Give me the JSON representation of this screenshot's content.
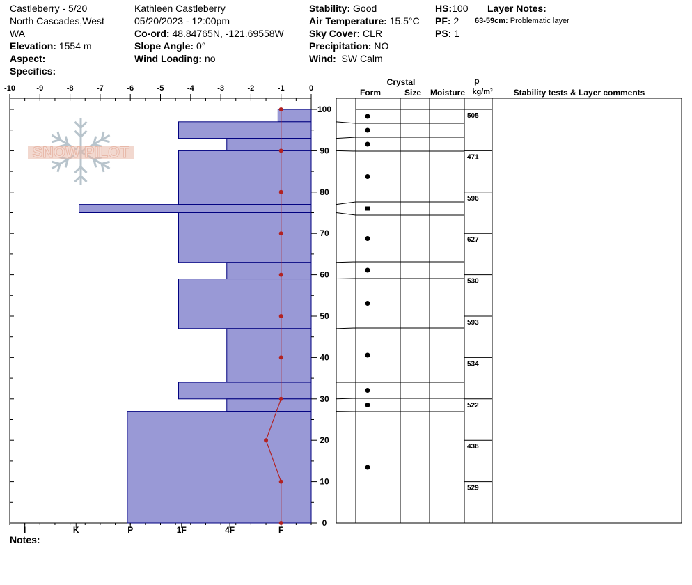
{
  "header": {
    "title": "Castleberry - 5/20",
    "location_line1": "North Cascades,West",
    "location_line2": "WA",
    "elevation_label": "Elevation:",
    "elevation_value": "1554 m",
    "aspect_label": "Aspect:",
    "aspect_value": "",
    "specifics_label": "Specifics:",
    "specifics_value": "",
    "observer": "Kathleen Castleberry",
    "datetime": "05/20/2023 - 12:00pm",
    "coord_label": "Co-ord:",
    "coord_value": "48.84765N, -121.69558W",
    "slope_label": "Slope Angle:",
    "slope_value": "0°",
    "wind_loading_label": "Wind Loading:",
    "wind_loading_value": "no",
    "stability_label": "Stability:",
    "stability_value": "Good",
    "air_temp_label": "Air Temperature:",
    "air_temp_value": "15.5°C",
    "sky_label": "Sky Cover:",
    "sky_value": "CLR",
    "precip_label": "Precipitation:",
    "precip_value": "NO",
    "wind_label": "Wind:",
    "wind_value": "SW Calm",
    "hs_label": "HS:",
    "hs_value": "100",
    "pf_label": "PF:",
    "pf_value": "2",
    "ps_label": "PS:",
    "ps_value": "1",
    "layer_notes_title": "Layer Notes:",
    "layer_note_range": "63-59cm:",
    "layer_note_text": "Problematic layer"
  },
  "notes_label": "Notes:",
  "watermark": "SNOW PILOT",
  "colors": {
    "hardness_fill": "#9999d6",
    "hardness_stroke": "#00007f",
    "temp_line": "#b22222"
  },
  "table_headers": {
    "crystal": "Crystal",
    "form": "Form",
    "size": "Size",
    "moisture": "Moisture",
    "rho": "ρ",
    "density_unit": "kg/m³",
    "comments": "Stability tests & Layer comments"
  },
  "chart_data": {
    "type": "snow_profile",
    "temperature_axis": {
      "range": [
        -10,
        0
      ],
      "ticks": [
        -10,
        -9,
        -8,
        -7,
        -6,
        -5,
        -4,
        -3,
        -2,
        -1,
        0
      ]
    },
    "hardness_axis": {
      "labels": [
        "I",
        "K",
        "P",
        "1F",
        "4F",
        "F"
      ],
      "values": [
        -9.5,
        -7.8,
        -6,
        -4.3,
        -2.7,
        -1
      ]
    },
    "height_axis": {
      "range": [
        0,
        100
      ],
      "ticks": [
        0,
        10,
        20,
        30,
        40,
        50,
        60,
        70,
        80,
        90,
        100
      ]
    },
    "hardness_layers": [
      {
        "top": 100,
        "bottom": 97,
        "temp_extent": -1.1
      },
      {
        "top": 97,
        "bottom": 93,
        "temp_extent": -4.4
      },
      {
        "top": 93,
        "bottom": 90,
        "temp_extent": -2.8
      },
      {
        "top": 90,
        "bottom": 77,
        "temp_extent": -4.4
      },
      {
        "top": 77,
        "bottom": 75,
        "temp_extent": -7.7
      },
      {
        "top": 75,
        "bottom": 63,
        "temp_extent": -4.4
      },
      {
        "top": 63,
        "bottom": 59,
        "temp_extent": -2.8
      },
      {
        "top": 59,
        "bottom": 47,
        "temp_extent": -4.4
      },
      {
        "top": 47,
        "bottom": 34,
        "temp_extent": -2.8
      },
      {
        "top": 34,
        "bottom": 30,
        "temp_extent": -4.4
      },
      {
        "top": 30,
        "bottom": 27,
        "temp_extent": -2.8
      },
      {
        "top": 27,
        "bottom": 0,
        "temp_extent": -6.1
      }
    ],
    "temperature_profile": [
      {
        "height": 100,
        "temp": -1
      },
      {
        "height": 90,
        "temp": -1
      },
      {
        "height": 80,
        "temp": -1
      },
      {
        "height": 70,
        "temp": -1
      },
      {
        "height": 60,
        "temp": -1
      },
      {
        "height": 50,
        "temp": -1
      },
      {
        "height": 40,
        "temp": -1
      },
      {
        "height": 30,
        "temp": -1
      },
      {
        "height": 20,
        "temp": -1.5
      },
      {
        "height": 10,
        "temp": -1
      },
      {
        "height": 0,
        "temp": -1
      }
    ],
    "crystal_layers": [
      {
        "top": 100,
        "bottom": 97,
        "form": "round"
      },
      {
        "top": 97,
        "bottom": 93,
        "form": "round"
      },
      {
        "top": 93,
        "bottom": 90,
        "form": "round"
      },
      {
        "top": 90,
        "bottom": 77,
        "form": "round"
      },
      {
        "top": 77,
        "bottom": 75,
        "form": "square"
      },
      {
        "top": 75,
        "bottom": 63,
        "form": "round"
      },
      {
        "top": 63,
        "bottom": 59,
        "form": "round"
      },
      {
        "top": 59,
        "bottom": 47,
        "form": "round"
      },
      {
        "top": 47,
        "bottom": 34,
        "form": "round"
      },
      {
        "top": 34,
        "bottom": 30,
        "form": "round"
      },
      {
        "top": 30,
        "bottom": 27,
        "form": "round"
      },
      {
        "top": 27,
        "bottom": 0,
        "form": "round"
      }
    ],
    "density_layers": [
      {
        "top": 100,
        "bottom": 90,
        "value": "505"
      },
      {
        "top": 90,
        "bottom": 80,
        "value": "471"
      },
      {
        "top": 80,
        "bottom": 70,
        "value": "596"
      },
      {
        "top": 70,
        "bottom": 60,
        "value": "627"
      },
      {
        "top": 60,
        "bottom": 50,
        "value": "530"
      },
      {
        "top": 50,
        "bottom": 40,
        "value": "593"
      },
      {
        "top": 40,
        "bottom": 30,
        "value": "534"
      },
      {
        "top": 30,
        "bottom": 20,
        "value": "522"
      },
      {
        "top": 20,
        "bottom": 10,
        "value": "436"
      },
      {
        "top": 10,
        "bottom": 0,
        "value": "529"
      }
    ]
  }
}
